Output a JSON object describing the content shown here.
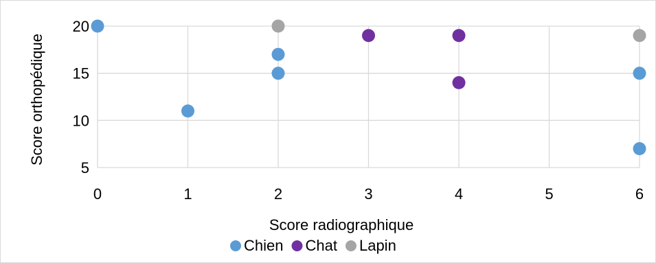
{
  "chart_data": {
    "type": "scatter",
    "title": "",
    "xlabel": "Score radiographique",
    "ylabel": "Score orthopédique",
    "xlim": [
      0,
      6
    ],
    "ylim": [
      5,
      20
    ],
    "xticks": [
      "0",
      "1",
      "2",
      "3",
      "4",
      "5",
      "6"
    ],
    "yticks": [
      "5",
      "10",
      "15",
      "20"
    ],
    "grid": true,
    "legend_position": "bottom",
    "series": [
      {
        "name": "Chien",
        "color": "#5b9bd5",
        "points": [
          {
            "x": 0,
            "y": 20
          },
          {
            "x": 1,
            "y": 11
          },
          {
            "x": 2,
            "y": 17
          },
          {
            "x": 2,
            "y": 15
          },
          {
            "x": 6,
            "y": 15
          },
          {
            "x": 6,
            "y": 7
          }
        ]
      },
      {
        "name": "Chat",
        "color": "#7030a0",
        "points": [
          {
            "x": 3,
            "y": 19
          },
          {
            "x": 4,
            "y": 19
          },
          {
            "x": 4,
            "y": 14
          }
        ]
      },
      {
        "name": "Lapin",
        "color": "#a5a5a5",
        "points": [
          {
            "x": 2,
            "y": 20
          },
          {
            "x": 6,
            "y": 19
          }
        ]
      }
    ]
  }
}
